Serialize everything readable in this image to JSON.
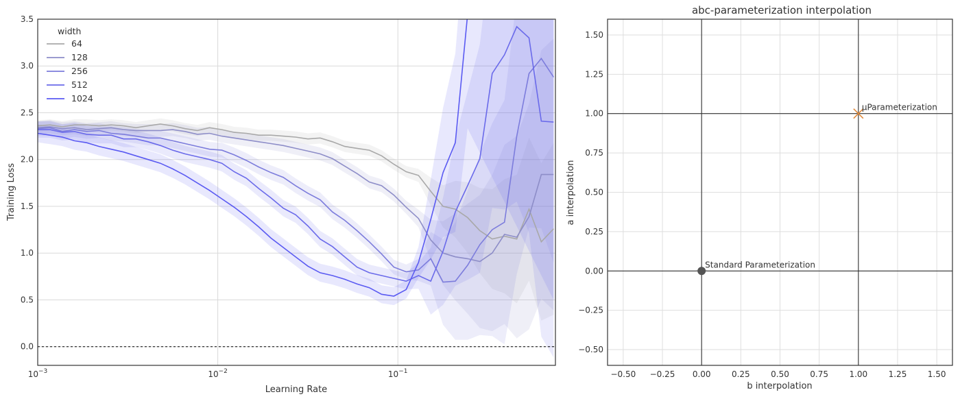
{
  "chart_data": [
    {
      "type": "line",
      "xlabel": "Learning Rate",
      "ylabel": "Training Loss",
      "xscale": "log",
      "xlim": [
        0.001,
        0.75
      ],
      "ylim": [
        -0.2,
        3.5
      ],
      "grid": true,
      "x_tick_labels": [
        {
          "value": 0.001,
          "base": "10",
          "exp": "−3"
        },
        {
          "value": 0.01,
          "base": "10",
          "exp": "−2"
        },
        {
          "value": 0.1,
          "base": "10",
          "exp": "−1"
        }
      ],
      "y_ticks": [
        0.0,
        0.5,
        1.0,
        1.5,
        2.0,
        2.5,
        3.0,
        3.5
      ],
      "y_tick_labels": [
        "0.0",
        "0.5",
        "1.0",
        "1.5",
        "2.0",
        "2.5",
        "3.0",
        "3.5"
      ],
      "reference_line": {
        "y": 0.0,
        "style": "dashed",
        "color": "#000000"
      },
      "legend": {
        "title": "width",
        "placement": "top-left"
      },
      "x": [
        0.001,
        0.00117,
        0.00137,
        0.0016,
        0.00187,
        0.00219,
        0.00256,
        0.003,
        0.00351,
        0.0041,
        0.0048,
        0.00562,
        0.00658,
        0.0077,
        0.009,
        0.01054,
        0.01233,
        0.01443,
        0.01688,
        0.01975,
        0.02311,
        0.02705,
        0.03165,
        0.03703,
        0.04333,
        0.0507,
        0.05933,
        0.06942,
        0.08123,
        0.09505,
        0.11122,
        0.13014,
        0.15228,
        0.17819,
        0.2085,
        0.24397,
        0.28548,
        0.33405,
        0.39088,
        0.45738,
        0.5352,
        0.62626,
        0.73281
      ],
      "series": [
        {
          "name": "64",
          "color": "#a8a8a8",
          "values": [
            2.36,
            2.37,
            2.35,
            2.37,
            2.37,
            2.36,
            2.37,
            2.36,
            2.34,
            2.36,
            2.38,
            2.36,
            2.33,
            2.31,
            2.34,
            2.32,
            2.29,
            2.28,
            2.26,
            2.26,
            2.25,
            2.24,
            2.22,
            2.23,
            2.19,
            2.14,
            2.12,
            2.1,
            2.04,
            1.95,
            1.87,
            1.83,
            1.66,
            1.5,
            1.47,
            1.38,
            1.24,
            1.15,
            1.18,
            1.15,
            1.47,
            1.12,
            1.26
          ]
        },
        {
          "name": "128",
          "color": "#8d8dc8",
          "values": [
            2.34,
            2.35,
            2.33,
            2.34,
            2.32,
            2.33,
            2.34,
            2.32,
            2.31,
            2.31,
            2.31,
            2.32,
            2.3,
            2.27,
            2.28,
            2.25,
            2.23,
            2.21,
            2.19,
            2.17,
            2.15,
            2.12,
            2.09,
            2.06,
            2.01,
            1.93,
            1.85,
            1.76,
            1.72,
            1.62,
            1.49,
            1.37,
            1.14,
            1.0,
            0.96,
            0.94,
            0.91,
            1.0,
            1.2,
            1.17,
            1.39,
            1.84,
            1.84
          ]
        },
        {
          "name": "256",
          "color": "#7c7cdc",
          "values": [
            2.33,
            2.34,
            2.3,
            2.32,
            2.3,
            2.31,
            2.28,
            2.27,
            2.25,
            2.23,
            2.23,
            2.2,
            2.17,
            2.14,
            2.11,
            2.1,
            2.05,
            1.99,
            1.92,
            1.86,
            1.81,
            1.72,
            1.64,
            1.57,
            1.44,
            1.35,
            1.24,
            1.12,
            0.99,
            0.85,
            0.8,
            0.82,
            0.94,
            0.69,
            0.7,
            0.87,
            1.09,
            1.25,
            1.33,
            2.25,
            2.92,
            3.08,
            2.88
          ]
        },
        {
          "name": "512",
          "color": "#6a6aea",
          "values": [
            2.32,
            2.32,
            2.29,
            2.3,
            2.27,
            2.26,
            2.26,
            2.22,
            2.22,
            2.19,
            2.15,
            2.1,
            2.06,
            2.03,
            2.0,
            1.96,
            1.87,
            1.8,
            1.69,
            1.59,
            1.48,
            1.41,
            1.29,
            1.15,
            1.07,
            0.96,
            0.85,
            0.79,
            0.76,
            0.73,
            0.7,
            0.76,
            0.7,
            1.02,
            1.44,
            1.72,
            2.01,
            2.92,
            3.12,
            3.42,
            3.3,
            2.41,
            2.4
          ]
        },
        {
          "name": "1024",
          "color": "#5a5af2",
          "values": [
            2.28,
            2.26,
            2.24,
            2.2,
            2.18,
            2.14,
            2.11,
            2.08,
            2.04,
            2.0,
            1.96,
            1.9,
            1.83,
            1.75,
            1.67,
            1.58,
            1.49,
            1.39,
            1.28,
            1.16,
            1.06,
            0.96,
            0.86,
            0.79,
            0.76,
            0.72,
            0.67,
            0.63,
            0.56,
            0.54,
            0.61,
            0.9,
            1.36,
            1.86,
            2.18,
            3.55,
            3.55,
            3.55,
            3.55,
            3.55,
            3.55,
            3.55,
            3.55
          ]
        }
      ]
    },
    {
      "type": "scatter",
      "title": "abc-parameterization interpolation",
      "xlabel": "b interpolation",
      "ylabel": "a interpolation",
      "xlim": [
        -0.6,
        1.6
      ],
      "ylim": [
        -0.6,
        1.6
      ],
      "grid": true,
      "x_ticks": [
        -0.5,
        -0.25,
        0.0,
        0.25,
        0.5,
        0.75,
        1.0,
        1.25,
        1.5
      ],
      "x_tick_labels": [
        "−0.50",
        "−0.25",
        "0.00",
        "0.25",
        "0.50",
        "0.75",
        "1.00",
        "1.25",
        "1.50"
      ],
      "y_ticks": [
        -0.5,
        -0.25,
        0.0,
        0.25,
        0.5,
        0.75,
        1.0,
        1.25,
        1.5
      ],
      "y_tick_labels": [
        "−0.50",
        "−0.25",
        "0.00",
        "0.25",
        "0.50",
        "0.75",
        "1.00",
        "1.25",
        "1.50"
      ],
      "hlines": [
        0.0,
        1.0
      ],
      "vlines": [
        0.0,
        1.0
      ],
      "points": [
        {
          "label": "Standard Parameterization",
          "x": 0.0,
          "y": 0.0,
          "marker": "circle",
          "color": "#555555"
        },
        {
          "label": "μParameterization",
          "x": 1.0,
          "y": 1.0,
          "marker": "x",
          "color": "#e08a3c"
        }
      ]
    }
  ]
}
